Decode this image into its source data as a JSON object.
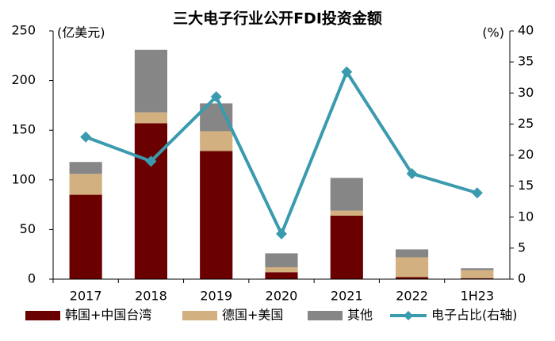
{
  "chart_data": {
    "type": "bar_line",
    "title": "三大电子行业公开FDI投资金额",
    "y_label": "(亿美元)",
    "y2_label": "(%)",
    "categories": [
      "2017",
      "2018",
      "2019",
      "2020",
      "2021",
      "2022",
      "1H23"
    ],
    "series": [
      {
        "name": "韩国+中国台湾",
        "type": "bar",
        "color": "#6b0000",
        "values": [
          85,
          157,
          129,
          7,
          64,
          2,
          1
        ]
      },
      {
        "name": "德国+美国",
        "type": "bar",
        "color": "#d2b07f",
        "values": [
          21,
          11,
          20,
          5,
          5,
          20,
          8
        ]
      },
      {
        "name": "其他",
        "type": "bar",
        "color": "#868686",
        "values": [
          12,
          63,
          28,
          14,
          33,
          8,
          2
        ]
      },
      {
        "name": "电子占比(右轴)",
        "type": "line",
        "axis": "y2",
        "color": "#3a9aae",
        "values": [
          22.9,
          19.0,
          29.4,
          7.3,
          33.4,
          17.0,
          13.9
        ]
      }
    ],
    "ylim": [
      0,
      250
    ],
    "yticks": [
      0,
      50,
      100,
      150,
      200,
      250
    ],
    "y2lim": [
      0,
      40
    ],
    "y2ticks": [
      0,
      5,
      10,
      15,
      20,
      25,
      30,
      35,
      40
    ],
    "legend": "bottom",
    "grid": false
  }
}
